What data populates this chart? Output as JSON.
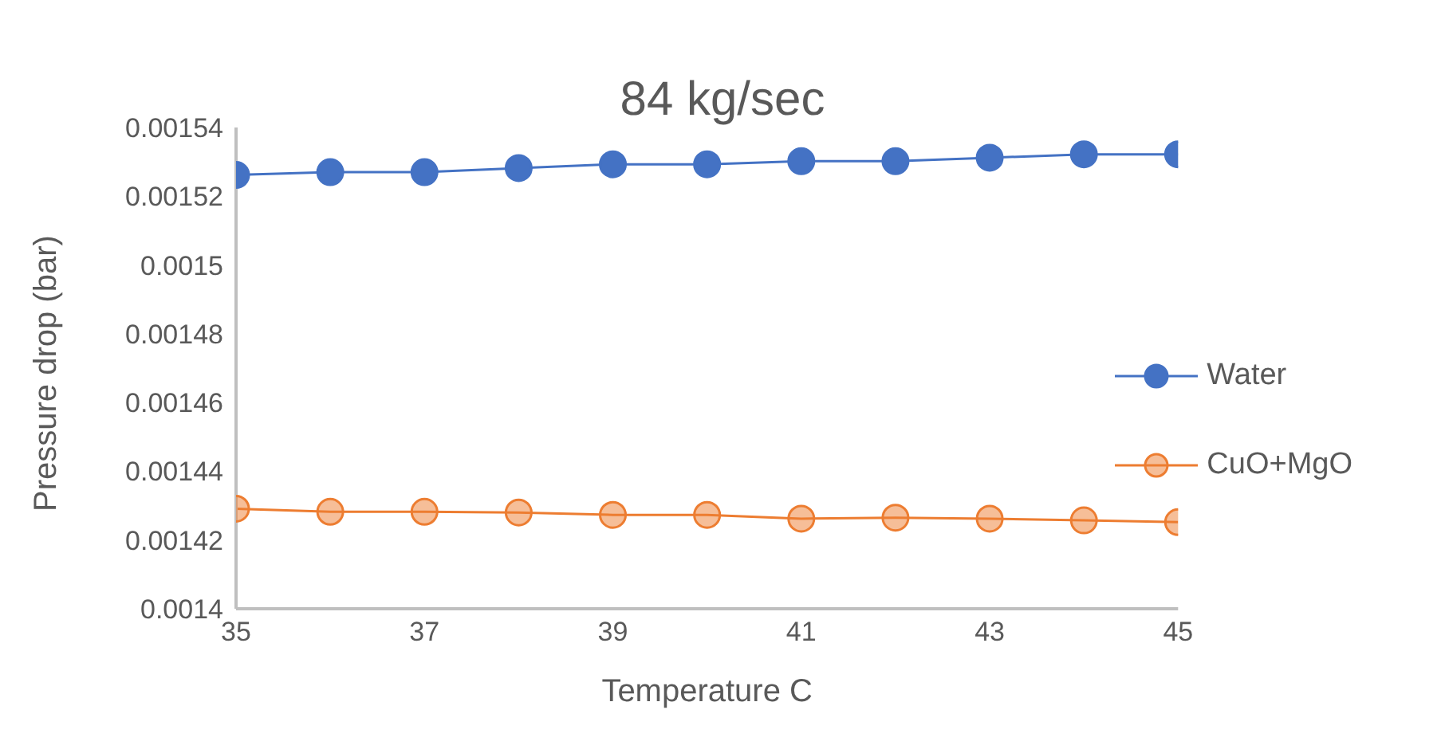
{
  "chart_data": {
    "type": "line",
    "title": "84 kg/sec",
    "xlabel": "Temperature C",
    "ylabel": "Pressure drop (bar)",
    "x": [
      35,
      36,
      37,
      38,
      39,
      40,
      41,
      42,
      43,
      44,
      45
    ],
    "series": [
      {
        "name": "Water",
        "color": "#4472c4",
        "values": [
          0.0015262,
          0.001527,
          0.001527,
          0.0015282,
          0.0015293,
          0.0015293,
          0.0015302,
          0.0015302,
          0.0015312,
          0.0015322,
          0.0015322
        ]
      },
      {
        "name": "CuO+MgO",
        "color": "#ed7d31",
        "values": [
          0.0014291,
          0.0014282,
          0.0014282,
          0.001428,
          0.0014273,
          0.0014273,
          0.0014262,
          0.0014265,
          0.0014262,
          0.0014257,
          0.0014252
        ]
      }
    ],
    "xlim": [
      35,
      45
    ],
    "xticks": [
      35,
      37,
      39,
      41,
      43,
      45
    ],
    "ylim": [
      0.0014,
      0.00154
    ],
    "yticks": [
      0.0014,
      0.00142,
      0.00144,
      0.00146,
      0.00148,
      0.0015,
      0.00152,
      0.00154
    ],
    "grid": false,
    "legend": "right",
    "marker": "circle",
    "line_style": "solid"
  }
}
